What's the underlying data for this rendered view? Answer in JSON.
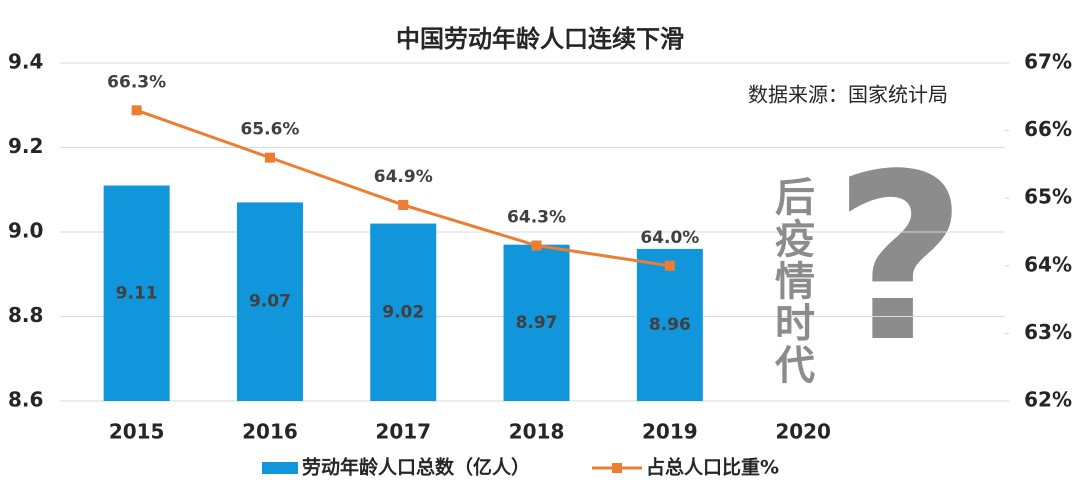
{
  "chart_data": {
    "type": "bar-line",
    "title": "中国劳动年龄人口连续下滑",
    "annotations": [
      "数据来源：国家统计局",
      "后疫情时代",
      "?"
    ],
    "categories": [
      "2015",
      "2016",
      "2017",
      "2018",
      "2019",
      "2020"
    ],
    "series": [
      {
        "name": "劳动年龄人口总数（亿人）",
        "color": "#1296db",
        "values": [
          9.11,
          9.07,
          9.02,
          8.97,
          8.96,
          null
        ]
      },
      {
        "name": "占总人口比重%",
        "color": "#ed7d31",
        "axis": "y2",
        "values": [
          66.3,
          65.6,
          64.9,
          64.3,
          64.0,
          null
        ],
        "value_labels": [
          "66.3%",
          "65.6%",
          "64.9%",
          "64.3%",
          "64.0%",
          null
        ]
      }
    ],
    "ylim": [
      8.6,
      9.4
    ],
    "yticks": [
      {
        "value": 8.6,
        "label": "8.6"
      },
      {
        "value": 8.8,
        "label": "8.8"
      },
      {
        "value": 9,
        "label": "9.0"
      },
      {
        "value": 9.2,
        "label": "9.2"
      },
      {
        "value": 9.4,
        "label": "9.4"
      }
    ],
    "y2lim": [
      62,
      67
    ],
    "y2ticks": [
      {
        "value": 62,
        "label": "62%"
      },
      {
        "value": 63,
        "label": "63%"
      },
      {
        "value": 64,
        "label": "64%"
      },
      {
        "value": 65,
        "label": "65%"
      },
      {
        "value": 66,
        "label": "66%"
      },
      {
        "value": 67,
        "label": "67%"
      }
    ],
    "grid": true
  }
}
